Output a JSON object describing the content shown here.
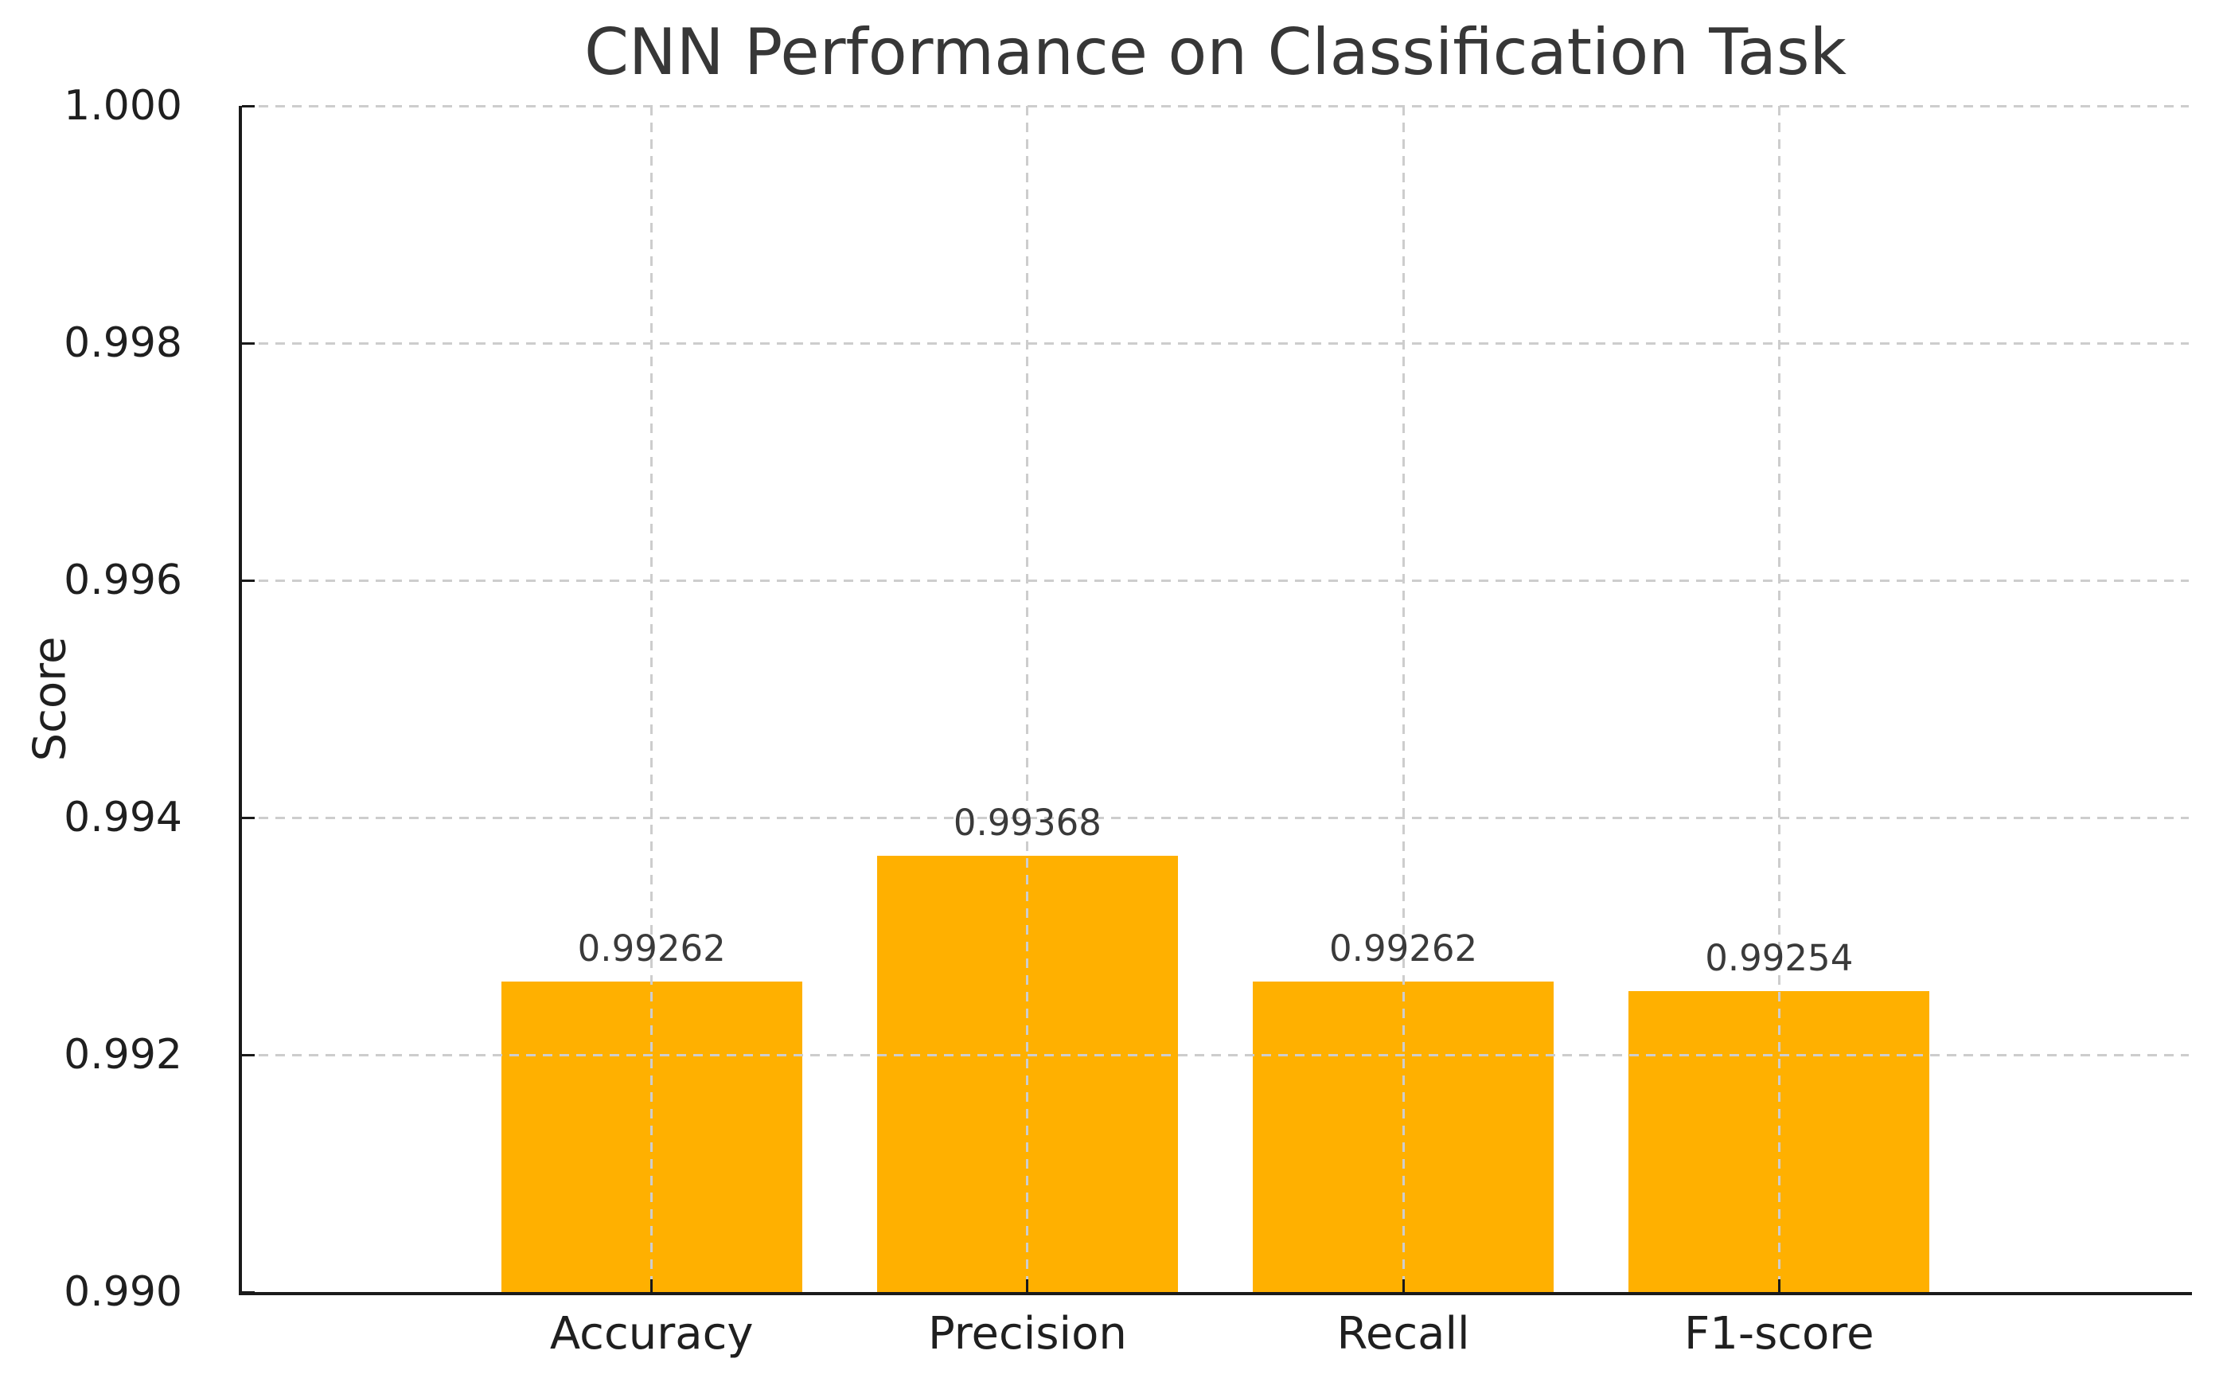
{
  "chart_data": {
    "type": "bar",
    "title": "CNN Performance on Classification Task",
    "xlabel": "",
    "ylabel": "Score",
    "categories": [
      "Accuracy",
      "Precision",
      "Recall",
      "F1-score"
    ],
    "values": [
      0.99262,
      0.99368,
      0.99262,
      0.99254
    ],
    "value_labels": [
      "0.99262",
      "0.99368",
      "0.99262",
      "0.99254"
    ],
    "ylim": [
      0.99,
      1.0
    ],
    "yticks": [
      0.99,
      0.992,
      0.994,
      0.996,
      0.998,
      1.0
    ],
    "ytick_labels": [
      "0.990",
      "0.992",
      "0.994",
      "0.996",
      "0.998",
      "1.000"
    ],
    "bar_color": "#FFB000",
    "grid": "on",
    "grid_style": "dashed",
    "grid_color": "#cdcdcd",
    "legend_position": "none",
    "bar_width_fraction": 0.8
  },
  "colors": {
    "background": "#ffffff",
    "title_text": "#373737",
    "axis_text": "#1f1f1f",
    "value_label_text": "#3a3a3a",
    "spine": "#1a1a1a"
  }
}
